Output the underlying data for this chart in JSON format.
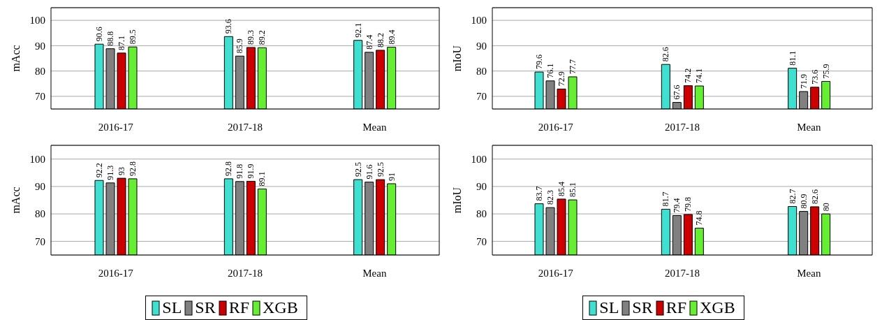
{
  "chart_data": [
    {
      "type": "bar",
      "ylabel": "mAcc",
      "categories": [
        "2016-17",
        "2017-18",
        "Mean"
      ],
      "ylim": [
        65,
        105
      ],
      "yticks": [
        70,
        80,
        90,
        100
      ],
      "grid": "y",
      "data_labels": true,
      "legend": false,
      "series": [
        {
          "color": "#40e0d0",
          "values": [
            90.6,
            93.6,
            92.1
          ]
        },
        {
          "color": "#808080",
          "values": [
            88.8,
            85.9,
            87.4
          ]
        },
        {
          "color": "#cc0000",
          "values": [
            87.1,
            89.3,
            88.2
          ]
        },
        {
          "color": "#66ee33",
          "values": [
            89.5,
            89.2,
            89.4
          ]
        }
      ]
    },
    {
      "type": "bar",
      "ylabel": "mIoU",
      "categories": [
        "2016-17",
        "2017-18",
        "Mean"
      ],
      "ylim": [
        65,
        105
      ],
      "yticks": [
        70,
        80,
        90,
        100
      ],
      "grid": "y",
      "data_labels": true,
      "legend": false,
      "series": [
        {
          "color": "#40e0d0",
          "values": [
            79.6,
            82.6,
            81.1
          ]
        },
        {
          "color": "#808080",
          "values": [
            76.1,
            67.6,
            71.9
          ]
        },
        {
          "color": "#cc0000",
          "values": [
            72.9,
            74.2,
            73.6
          ]
        },
        {
          "color": "#66ee33",
          "values": [
            77.7,
            74.1,
            75.9
          ]
        }
      ]
    },
    {
      "type": "bar",
      "ylabel": "mAcc",
      "categories": [
        "2016-17",
        "2017-18",
        "Mean"
      ],
      "ylim": [
        65,
        105
      ],
      "yticks": [
        70,
        80,
        90,
        100
      ],
      "grid": "y",
      "data_labels": true,
      "legend": "bottom",
      "series": [
        {
          "name": "SL",
          "color": "#40e0d0",
          "values": [
            92.2,
            92.8,
            92.5
          ]
        },
        {
          "name": "SR",
          "color": "#808080",
          "values": [
            91.3,
            91.8,
            91.6
          ]
        },
        {
          "name": "RF",
          "color": "#cc0000",
          "values": [
            93,
            91.9,
            92.5
          ]
        },
        {
          "name": "XGB",
          "color": "#66ee33",
          "values": [
            92.8,
            89.1,
            91
          ]
        }
      ]
    },
    {
      "type": "bar",
      "ylabel": "mIoU",
      "categories": [
        "2016-17",
        "2017-18",
        "Mean"
      ],
      "ylim": [
        65,
        105
      ],
      "yticks": [
        70,
        80,
        90,
        100
      ],
      "grid": "y",
      "data_labels": true,
      "legend": "bottom",
      "series": [
        {
          "name": "SL",
          "color": "#40e0d0",
          "values": [
            83.7,
            81.7,
            82.7
          ]
        },
        {
          "name": "SR",
          "color": "#808080",
          "values": [
            82.3,
            79.4,
            80.9
          ]
        },
        {
          "name": "RF",
          "color": "#cc0000",
          "values": [
            85.4,
            79.8,
            82.6
          ]
        },
        {
          "name": "XGB",
          "color": "#66ee33",
          "values": [
            85.1,
            74.8,
            80
          ]
        }
      ]
    }
  ]
}
